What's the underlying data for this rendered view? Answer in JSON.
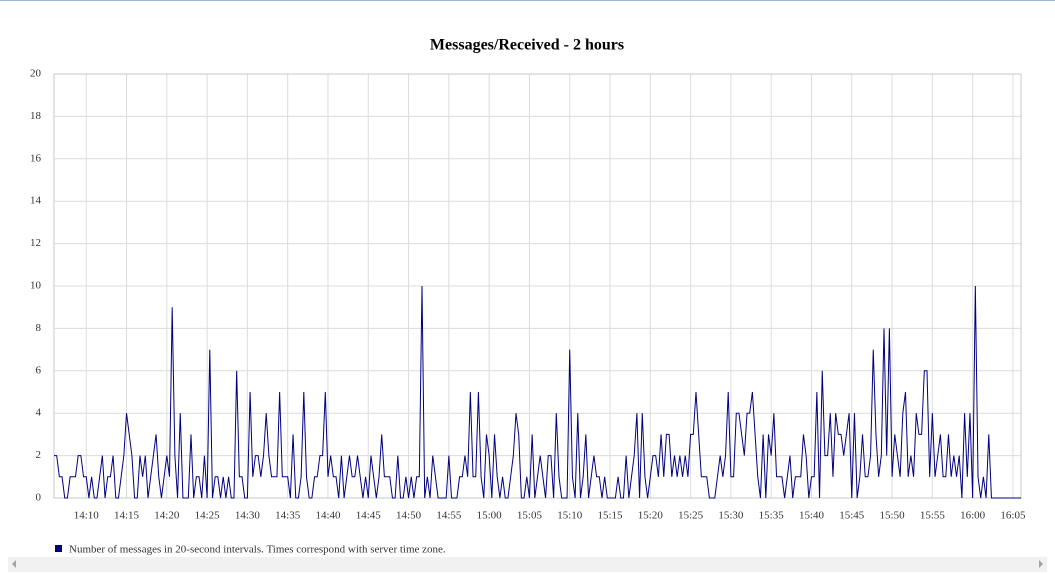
{
  "chart_data": {
    "type": "line",
    "title": "Messages/Received - 2 hours",
    "x": [
      50760,
      50780,
      50800,
      50820,
      50840,
      50860,
      50880,
      50900,
      50920,
      50940,
      50960,
      50980,
      51000,
      51020,
      51040,
      51060,
      51080,
      51100,
      51120,
      51140,
      51160,
      51180,
      51200,
      51220,
      51240,
      51260,
      51280,
      51300,
      51320,
      51340,
      51360,
      51380,
      51400,
      51420,
      51440,
      51460,
      51480,
      51500,
      51520,
      51540,
      51560,
      51580,
      51600,
      51620,
      51640,
      51660,
      51680,
      51700,
      51720,
      51740,
      51760,
      51780,
      51800,
      51820,
      51840,
      51860,
      51880,
      51900,
      51920,
      51940,
      51960,
      51980,
      52000,
      52020,
      52040,
      52060,
      52080,
      52100,
      52120,
      52140,
      52160,
      52180,
      52200,
      52220,
      52240,
      52260,
      52280,
      52300,
      52320,
      52340,
      52360,
      52380,
      52400,
      52420,
      52440,
      52460,
      52480,
      52500,
      52520,
      52540,
      52560,
      52580,
      52600,
      52620,
      52640,
      52660,
      52680,
      52700,
      52720,
      52740,
      52760,
      52780,
      52800,
      52820,
      52840,
      52860,
      52880,
      52900,
      52920,
      52940,
      52960,
      52980,
      53000,
      53020,
      53040,
      53060,
      53080,
      53100,
      53120,
      53140,
      53160,
      53180,
      53200,
      53220,
      53240,
      53260,
      53280,
      53300,
      53320,
      53340,
      53360,
      53380,
      53400,
      53420,
      53440,
      53460,
      53480,
      53500,
      53520,
      53540,
      53560,
      53580,
      53600,
      53620,
      53640,
      53660,
      53680,
      53700,
      53720,
      53740,
      53760,
      53780,
      53800,
      53820,
      53840,
      53860,
      53880,
      53900,
      53920,
      53940,
      53960,
      53980,
      54000,
      54020,
      54040,
      54060,
      54080,
      54100,
      54120,
      54140,
      54160,
      54180,
      54200,
      54220,
      54240,
      54260,
      54280,
      54300,
      54320,
      54340,
      54360,
      54380,
      54400,
      54420,
      54440,
      54460,
      54480,
      54500,
      54520,
      54540,
      54560,
      54580,
      54600,
      54620,
      54640,
      54660,
      54680,
      54700,
      54720,
      54740,
      54760,
      54780,
      54800,
      54820,
      54840,
      54860,
      54880,
      54900,
      54920,
      54940,
      54960,
      54980,
      55000,
      55020,
      55040,
      55060,
      55080,
      55100,
      55120,
      55140,
      55160,
      55180,
      55200,
      55220,
      55240,
      55260,
      55280,
      55300,
      55320,
      55340,
      55360,
      55380,
      55400,
      55420,
      55440,
      55460,
      55480,
      55500,
      55520,
      55540,
      55560,
      55580,
      55600,
      55620,
      55640,
      55660,
      55680,
      55700,
      55720,
      55740,
      55760,
      55780,
      55800,
      55820,
      55840,
      55860,
      55880,
      55900,
      55920,
      55940,
      55960,
      55980,
      56000,
      56020,
      56040,
      56060,
      56080,
      56100,
      56120,
      56140,
      56160,
      56180,
      56200,
      56220,
      56240,
      56260,
      56280,
      56300,
      56320,
      56340,
      56360,
      56380,
      56400,
      56420,
      56440,
      56460,
      56480,
      56500,
      56520,
      56540,
      56560,
      56580,
      56600,
      56620,
      56640,
      56660,
      56680,
      56700,
      56720,
      56740,
      56760,
      56780,
      56800,
      56820,
      56840,
      56860,
      56880,
      56900,
      56920,
      56940,
      56960,
      56980,
      57000,
      57020,
      57040,
      57060,
      57080,
      57100,
      57120,
      57140,
      57160,
      57180,
      57200,
      57220,
      57240,
      57260,
      57280,
      57300,
      57320,
      57340,
      57360,
      57380,
      57400,
      57420,
      57440,
      57460,
      57480,
      57500,
      57520,
      57540,
      57560,
      57580,
      57600,
      57620,
      57640,
      57660,
      57680,
      57700,
      57720,
      57740,
      57760,
      57780,
      57800,
      57820,
      57840,
      57860,
      57880,
      57900,
      57920,
      57940,
      57960
    ],
    "series": [
      {
        "name": "Number of messages in 20-second intervals. Times correspond with server time zone.",
        "color": "#000080",
        "values": [
          2,
          2,
          1,
          1,
          0,
          0,
          1,
          1,
          1,
          2,
          2,
          1,
          1,
          0,
          1,
          0,
          0,
          1,
          2,
          0,
          1,
          1,
          2,
          0,
          0,
          1,
          2,
          4,
          3,
          2,
          0,
          0,
          2,
          1,
          2,
          0,
          1,
          2,
          3,
          1,
          0,
          1,
          2,
          1,
          9,
          2,
          0,
          4,
          0,
          0,
          0,
          3,
          0,
          1,
          1,
          0,
          2,
          0,
          7,
          0,
          1,
          1,
          0,
          1,
          0,
          1,
          0,
          0,
          6,
          1,
          1,
          0,
          0,
          5,
          1,
          2,
          2,
          1,
          2,
          4,
          2,
          1,
          1,
          1,
          5,
          1,
          1,
          1,
          0,
          3,
          0,
          0,
          1,
          5,
          1,
          0,
          0,
          1,
          1,
          2,
          2,
          5,
          1,
          2,
          1,
          1,
          0,
          2,
          0,
          1,
          2,
          1,
          1,
          2,
          1,
          0,
          1,
          0,
          2,
          1,
          0,
          1,
          3,
          1,
          1,
          1,
          0,
          0,
          2,
          0,
          0,
          1,
          0,
          1,
          0,
          1,
          1,
          10,
          0,
          1,
          0,
          2,
          1,
          0,
          0,
          0,
          0,
          2,
          0,
          0,
          0,
          1,
          1,
          2,
          1,
          5,
          1,
          1,
          5,
          1,
          0,
          3,
          2,
          0,
          3,
          1,
          0,
          1,
          0,
          0,
          1,
          2,
          4,
          3,
          0,
          0,
          1,
          0,
          3,
          0,
          1,
          2,
          1,
          0,
          2,
          2,
          0,
          4,
          1,
          0,
          0,
          0,
          7,
          1,
          0,
          4,
          0,
          1,
          3,
          0,
          1,
          2,
          1,
          1,
          0,
          1,
          0,
          0,
          0,
          0,
          1,
          0,
          0,
          2,
          0,
          1,
          2,
          4,
          0,
          4,
          1,
          0,
          1,
          2,
          2,
          1,
          3,
          1,
          3,
          3,
          1,
          2,
          1,
          2,
          1,
          2,
          1,
          3,
          3,
          5,
          3,
          1,
          1,
          1,
          0,
          0,
          0,
          1,
          2,
          1,
          2,
          5,
          1,
          1,
          4,
          4,
          3,
          2,
          4,
          4,
          5,
          3,
          1,
          0,
          3,
          0,
          3,
          2,
          4,
          1,
          1,
          1,
          0,
          1,
          2,
          0,
          1,
          1,
          1,
          3,
          2,
          0,
          1,
          1,
          5,
          0,
          6,
          2,
          2,
          4,
          1,
          4,
          3,
          3,
          2,
          3,
          4,
          0,
          4,
          0,
          1,
          3,
          1,
          1,
          2,
          7,
          3,
          1,
          2,
          8,
          2,
          8,
          1,
          3,
          2,
          1,
          4,
          5,
          1,
          2,
          1,
          4,
          3,
          3,
          6,
          6,
          1,
          4,
          1,
          2,
          3,
          1,
          1,
          3,
          1,
          2,
          1,
          2,
          0,
          4,
          1,
          4,
          0,
          10,
          1,
          0,
          1,
          0,
          3,
          0,
          0,
          0,
          0,
          0,
          0,
          0,
          0,
          0,
          0,
          0,
          0
        ]
      }
    ],
    "xlim": [
      50760,
      57960
    ],
    "xticks": [
      {
        "value": 51000,
        "label": "14:10"
      },
      {
        "value": 51300,
        "label": "14:15"
      },
      {
        "value": 51600,
        "label": "14:20"
      },
      {
        "value": 51900,
        "label": "14:25"
      },
      {
        "value": 52200,
        "label": "14:30"
      },
      {
        "value": 52500,
        "label": "14:35"
      },
      {
        "value": 52800,
        "label": "14:40"
      },
      {
        "value": 53100,
        "label": "14:45"
      },
      {
        "value": 53400,
        "label": "14:50"
      },
      {
        "value": 53700,
        "label": "14:55"
      },
      {
        "value": 54000,
        "label": "15:00"
      },
      {
        "value": 54300,
        "label": "15:05"
      },
      {
        "value": 54600,
        "label": "15:10"
      },
      {
        "value": 54900,
        "label": "15:15"
      },
      {
        "value": 55200,
        "label": "15:20"
      },
      {
        "value": 55500,
        "label": "15:25"
      },
      {
        "value": 55800,
        "label": "15:30"
      },
      {
        "value": 56100,
        "label": "15:35"
      },
      {
        "value": 56400,
        "label": "15:40"
      },
      {
        "value": 56700,
        "label": "15:45"
      },
      {
        "value": 57000,
        "label": "15:50"
      },
      {
        "value": 57300,
        "label": "15:55"
      },
      {
        "value": 57600,
        "label": "16:00"
      },
      {
        "value": 57900,
        "label": "16:05"
      }
    ],
    "ylim": [
      0,
      20
    ],
    "yticks": [
      0,
      2,
      4,
      6,
      8,
      10,
      12,
      14,
      16,
      18,
      20
    ],
    "grid": true
  }
}
